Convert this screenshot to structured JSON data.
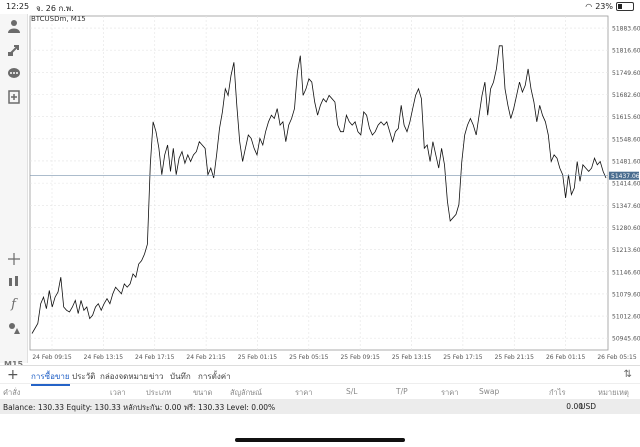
{
  "status_bar": {
    "time": "12:25",
    "date": "จ. 26 ก.พ.",
    "battery": "23%"
  },
  "chart": {
    "symbol": "BTCUSDm, M15",
    "current_price": "51437.06"
  },
  "timeframe": "M15",
  "tabs": [
    "การซื้อขาย",
    "ประวัติ",
    "กล่องจดหมาย",
    "ข่าว",
    "บันทึก",
    "การตั้งค่า"
  ],
  "columns": [
    "คำสั่ง",
    "เวลา",
    "ประเภท",
    "ขนาด",
    "สัญลักษณ์",
    "ราคา",
    "S/L",
    "T/P",
    "ราคา",
    "Swap",
    "กำไร",
    "หมายเหตุ"
  ],
  "balance": {
    "text": "Balance: 130.33  Equity: 130.33  หลักประกัน: 0.00  ฟรี: 130.33  Level: 0.00%",
    "profit": "0.00",
    "currency": "USD"
  },
  "icons": [
    "account-icon",
    "trade-icon",
    "chat-icon",
    "new-order-icon",
    "crosshair-icon",
    "indicator-icon",
    "function-icon",
    "objects-icon",
    "add-icon",
    "sort-icon"
  ],
  "chart_data": {
    "type": "line",
    "title": "BTCUSDm, M15",
    "x_ticks": [
      "24 Feb 09:15",
      "24 Feb 13:15",
      "24 Feb 17:15",
      "24 Feb 21:15",
      "25 Feb 01:15",
      "25 Feb 05:15",
      "25 Feb 09:15",
      "25 Feb 13:15",
      "25 Feb 17:15",
      "25 Feb 21:15",
      "26 Feb 01:15",
      "26 Feb 05:15"
    ],
    "y_ticks": [
      51883.6,
      51816.6,
      51749.6,
      51682.6,
      51615.6,
      51548.6,
      51481.6,
      51414.6,
      51347.6,
      51280.6,
      51213.6,
      51146.6,
      51079.6,
      51012.6,
      50945.6
    ],
    "ylim": [
      50910,
      51920
    ],
    "current_price": 51437.06,
    "series": [
      {
        "values": [
          50960,
          50975,
          50990,
          51050,
          51070,
          51035,
          51090,
          51040,
          51070,
          51085,
          51130,
          51040,
          51030,
          51025,
          51040,
          51060,
          51020,
          51060,
          51030,
          51040,
          51005,
          51015,
          51040,
          51050,
          51030,
          51050,
          51065,
          51050,
          51080,
          51100,
          51090,
          51080,
          51110,
          51100,
          51110,
          51140,
          51130,
          51170,
          51180,
          51200,
          51230,
          51470,
          51600,
          51570,
          51520,
          51440,
          51500,
          51530,
          51450,
          51520,
          51440,
          51490,
          51510,
          51475,
          51500,
          51480,
          51500,
          51510,
          51540,
          51530,
          51520,
          51440,
          51460,
          51430,
          51500,
          51580,
          51630,
          51700,
          51680,
          51740,
          51780,
          51650,
          51540,
          51480,
          51520,
          51560,
          51550,
          51520,
          51500,
          51550,
          51530,
          51570,
          51600,
          51620,
          51610,
          51640,
          51590,
          51600,
          51540,
          51590,
          51610,
          51640,
          51750,
          51800,
          51680,
          51700,
          51730,
          51720,
          51660,
          51620,
          51650,
          51670,
          51660,
          51680,
          51670,
          51660,
          51590,
          51570,
          51570,
          51620,
          51600,
          51590,
          51600,
          51570,
          51560,
          51630,
          51620,
          51580,
          51560,
          51570,
          51590,
          51600,
          51590,
          51600,
          51570,
          51540,
          51570,
          51580,
          51650,
          51590,
          51570,
          51600,
          51640,
          51680,
          51700,
          51670,
          51520,
          51530,
          51480,
          51540,
          51500,
          51460,
          51520,
          51470,
          51360,
          51300,
          51310,
          51320,
          51350,
          51480,
          51560,
          51590,
          51610,
          51590,
          51560,
          51620,
          51680,
          51720,
          51620,
          51700,
          51720,
          51760,
          51830,
          51830,
          51700,
          51650,
          51610,
          51640,
          51680,
          51720,
          51690,
          51710,
          51760,
          51700,
          51660,
          51600,
          51650,
          51620,
          51600,
          51560,
          51480,
          51500,
          51490,
          51460,
          51440,
          51370,
          51440,
          51380,
          51400,
          51480,
          51420,
          51470,
          51460,
          51450,
          51460,
          51490,
          51470,
          51480,
          51450,
          51430
        ]
      }
    ]
  }
}
